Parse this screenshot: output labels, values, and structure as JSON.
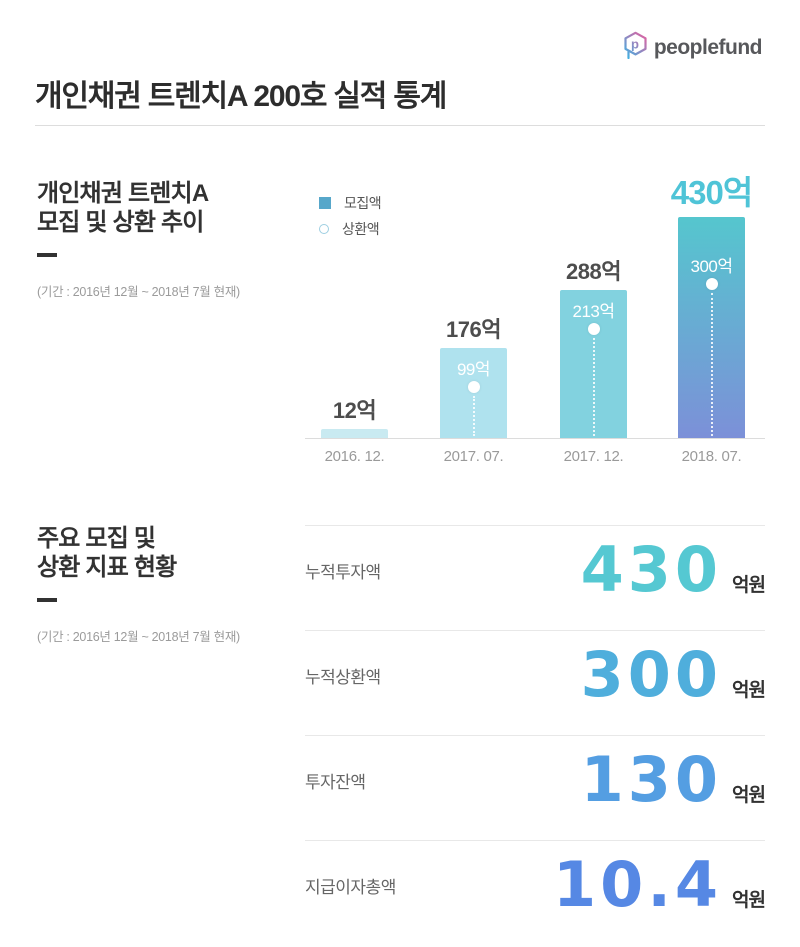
{
  "header": {
    "logo_text": "peoplefund",
    "title": "개인채권 트렌치A 200호 실적 통계"
  },
  "chart_section": {
    "title_line1": "개인채권 트렌치A",
    "title_line2": "모집 및 상환 추이",
    "period": "(기간 : 2016년 12월 ~ 2018년 7월 현재)",
    "legend": [
      {
        "label": "모집액",
        "swatch": "filled-square"
      },
      {
        "label": "상환액",
        "swatch": "outline-circle"
      }
    ]
  },
  "chart_data": {
    "type": "bar",
    "title": "개인채권 트렌치A 모집 및 상환 추이",
    "unit": "억",
    "categories": [
      "2016. 12.",
      "2017. 07.",
      "2017. 12.",
      "2018. 07."
    ],
    "series": [
      {
        "name": "모집액",
        "values": [
          12,
          176,
          288,
          430
        ]
      },
      {
        "name": "상환액",
        "values": [
          null,
          99,
          213,
          300
        ]
      }
    ],
    "value_labels": [
      "12억",
      "176억",
      "288억",
      "430억"
    ],
    "repaid_labels": [
      null,
      "99억",
      "213억",
      "300억"
    ],
    "bar_colors": [
      "#c9eaf1",
      "#afe2ee",
      "#82d2df",
      "linear-gradient(180deg,#55c6ce 0%,#7c90d8 100%)"
    ],
    "value_label_colors": [
      "#4d4d4d",
      "#4d4d4d",
      "#4d4d4d",
      "#4fc4d7"
    ],
    "highlight_index": 3,
    "ylim": [
      0,
      430
    ],
    "grid": false,
    "legend_position": "top-left"
  },
  "metrics_section": {
    "title_line1": "주요 모집 및",
    "title_line2": "상환 지표 현황",
    "period": "(기간 : 2016년 12월 ~ 2018년 7월 현재)",
    "rows": [
      {
        "label": "누적투자액",
        "value": "430",
        "unit": "억원",
        "color": "#55c8d2"
      },
      {
        "label": "누적상환액",
        "value": "300",
        "unit": "억원",
        "color": "#4faedc"
      },
      {
        "label": "투자잔액",
        "value": "130",
        "unit": "억원",
        "color": "#549ee2"
      },
      {
        "label": "지급이자총액",
        "value": "10.4",
        "unit": "억원",
        "color": "#5688e4"
      }
    ]
  },
  "brand": {
    "logo_gradient_start": "#33b7e8",
    "logo_gradient_end": "#f0599a"
  }
}
